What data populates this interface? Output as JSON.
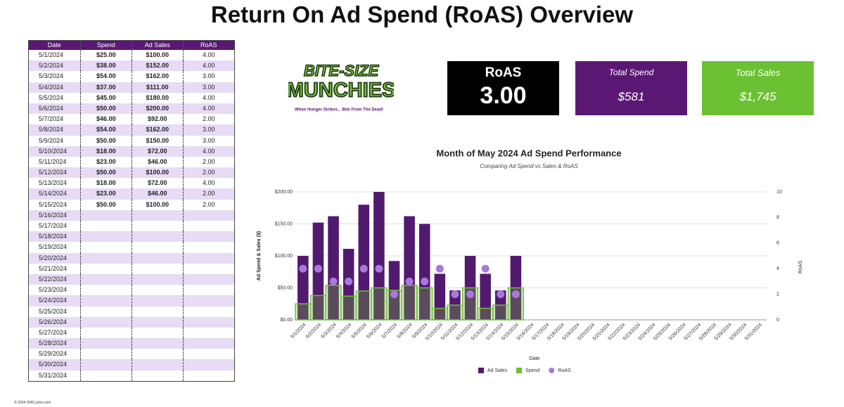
{
  "header": {
    "title": "Return On Ad Spend (RoAS) Overview"
  },
  "table": {
    "columns": [
      "Date",
      "Spend",
      "Ad Sales",
      "RoAS"
    ],
    "rows": [
      [
        "5/1/2024",
        "$25.00",
        "$100.00",
        "4.00"
      ],
      [
        "5/2/2024",
        "$38.00",
        "$152.00",
        "4.00"
      ],
      [
        "5/3/2024",
        "$54.00",
        "$162.00",
        "3.00"
      ],
      [
        "5/4/2024",
        "$37.00",
        "$111.00",
        "3.00"
      ],
      [
        "5/5/2024",
        "$45.00",
        "$180.00",
        "4.00"
      ],
      [
        "5/6/2024",
        "$50.00",
        "$200.00",
        "4.00"
      ],
      [
        "5/7/2024",
        "$46.00",
        "$92.00",
        "2.00"
      ],
      [
        "5/8/2024",
        "$54.00",
        "$162.00",
        "3.00"
      ],
      [
        "5/9/2024",
        "$50.00",
        "$150.00",
        "3.00"
      ],
      [
        "5/10/2024",
        "$18.00",
        "$72.00",
        "4.00"
      ],
      [
        "5/11/2024",
        "$23.00",
        "$46.00",
        "2.00"
      ],
      [
        "5/12/2024",
        "$50.00",
        "$100.00",
        "2.00"
      ],
      [
        "5/13/2024",
        "$18.00",
        "$72.00",
        "4.00"
      ],
      [
        "5/14/2024",
        "$23.00",
        "$46.00",
        "2.00"
      ],
      [
        "5/15/2024",
        "$50.00",
        "$100.00",
        "2.00"
      ],
      [
        "5/16/2024"
      ],
      [
        "5/17/2024"
      ],
      [
        "5/18/2024"
      ],
      [
        "5/19/2024"
      ],
      [
        "5/20/2024"
      ],
      [
        "5/21/2024"
      ],
      [
        "5/22/2024"
      ],
      [
        "5/23/2024"
      ],
      [
        "5/24/2024"
      ],
      [
        "5/25/2024"
      ],
      [
        "5/26/2024"
      ],
      [
        "5/27/2024"
      ],
      [
        "5/28/2024"
      ],
      [
        "5/29/2024"
      ],
      [
        "5/30/2024"
      ],
      [
        "5/31/2024"
      ]
    ]
  },
  "logo": {
    "line1": "BITE-SIZE",
    "line2": "MUNCHIES",
    "tagline": "When Hunger Strikes... Bite From The Dead!"
  },
  "kpis": [
    {
      "label": "RoAS",
      "value": "3.00"
    },
    {
      "label": "Total Spend",
      "value": "$581"
    },
    {
      "label": "Total Sales",
      "value": "$1,745"
    }
  ],
  "chart_data": {
    "type": "combo",
    "title": "Month of May 2024 Ad Spend Performance",
    "subtitle": "Comparing Ad Spend vs Sales & RoAS",
    "x_label": "Date",
    "y_label": "Ad Spend & Sales ($)",
    "y2_label": "RoAS",
    "categories": [
      "5/1/2024",
      "5/2/2024",
      "5/3/2024",
      "5/4/2024",
      "5/5/2024",
      "5/6/2024",
      "5/7/2024",
      "5/8/2024",
      "5/9/2024",
      "5/10/2024",
      "5/11/2024",
      "5/12/2024",
      "5/13/2024",
      "5/14/2024",
      "5/15/2024",
      "5/16/2024",
      "5/17/2024",
      "5/18/2024",
      "5/19/2024",
      "5/20/2024",
      "5/21/2024",
      "5/22/2024",
      "5/23/2024",
      "5/24/2024",
      "5/25/2024",
      "5/26/2024",
      "5/27/2024",
      "5/28/2024",
      "5/29/2024",
      "5/30/2024",
      "5/31/2024"
    ],
    "series": [
      {
        "name": "Ad Sales",
        "type": "bar",
        "color": "#521a6e",
        "values": [
          100,
          152,
          162,
          111,
          180,
          200,
          92,
          162,
          150,
          72,
          46,
          100,
          72,
          46,
          100,
          null,
          null,
          null,
          null,
          null,
          null,
          null,
          null,
          null,
          null,
          null,
          null,
          null,
          null,
          null,
          null
        ]
      },
      {
        "name": "Spend",
        "type": "step",
        "color": "#6cc133",
        "values": [
          25,
          38,
          54,
          37,
          45,
          50,
          46,
          54,
          50,
          18,
          23,
          50,
          18,
          23,
          50,
          null,
          null,
          null,
          null,
          null,
          null,
          null,
          null,
          null,
          null,
          null,
          null,
          null,
          null,
          null,
          null
        ]
      },
      {
        "name": "RoAS",
        "type": "scatter",
        "color": "#a978dc",
        "axis": "y2",
        "values": [
          4,
          4,
          3,
          3,
          4,
          4,
          2,
          3,
          3,
          4,
          2,
          2,
          4,
          2,
          2,
          null,
          null,
          null,
          null,
          null,
          null,
          null,
          null,
          null,
          null,
          null,
          null,
          null,
          null,
          null,
          null
        ]
      }
    ],
    "ylim": [
      0,
      200
    ],
    "yticks": [
      {
        "value": 0,
        "label": "$0.00"
      },
      {
        "value": 50,
        "label": "$50.00"
      },
      {
        "value": 100,
        "label": "$100.00"
      },
      {
        "value": 150,
        "label": "$150.00"
      },
      {
        "value": 200,
        "label": "$200.00"
      }
    ],
    "y2lim": [
      0,
      10
    ],
    "y2ticks": [
      0,
      2,
      4,
      6,
      8,
      10
    ],
    "grid": true,
    "legend": "bottom"
  },
  "footer": {
    "copyright": "© 2024 OWLLytics.com"
  }
}
